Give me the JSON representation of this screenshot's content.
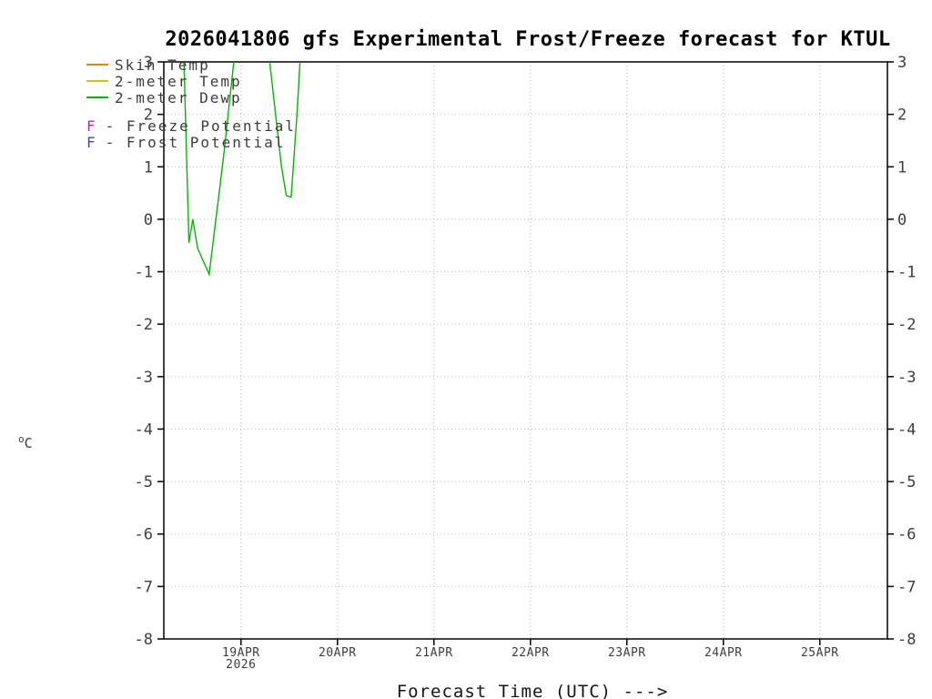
{
  "chart_data": {
    "type": "line",
    "title": "2026041806 gfs Experimental Frost/Freeze forecast for KTUL",
    "xlabel": "Forecast Time (UTC) --->",
    "ylabel_sup": "o",
    "ylabel_main": "C",
    "ylim": [
      -8,
      3
    ],
    "x_range_days": [
      18.2,
      25.7
    ],
    "y_ticks": [
      3,
      2,
      1,
      0,
      -1,
      -2,
      -3,
      -4,
      -5,
      -6,
      -7,
      -8
    ],
    "x_ticks": [
      {
        "label": "19APR",
        "day": 19,
        "sub": "2026"
      },
      {
        "label": "20APR",
        "day": 20
      },
      {
        "label": "21APR",
        "day": 21
      },
      {
        "label": "22APR",
        "day": 22
      },
      {
        "label": "23APR",
        "day": 23
      },
      {
        "label": "24APR",
        "day": 24
      },
      {
        "label": "25APR",
        "day": 25
      }
    ],
    "grid": "dotted",
    "legend_position": "top-left",
    "series": [
      {
        "name": "Skin Temp",
        "color": "#e98300",
        "points": []
      },
      {
        "name": "2-meter Temp",
        "color": "#d9c300",
        "points": []
      },
      {
        "name": "2-meter Dewp",
        "color": "#00b800",
        "points": [
          [
            18.4,
            3.6
          ],
          [
            18.46,
            -0.45
          ],
          [
            18.5,
            0.0
          ],
          [
            18.55,
            -0.55
          ],
          [
            18.67,
            -1.05
          ],
          [
            18.82,
            1.2
          ],
          [
            18.96,
            3.6
          ],
          [
            19.1,
            6.0
          ],
          [
            19.26,
            3.6
          ],
          [
            19.42,
            1.0
          ],
          [
            19.47,
            0.45
          ],
          [
            19.52,
            0.42
          ],
          [
            19.58,
            2.0
          ],
          [
            19.63,
            3.6
          ]
        ]
      }
    ],
    "flags": [
      {
        "letter": "F",
        "label": "- Freeze Potential",
        "color": "#f000f0"
      },
      {
        "letter": "F",
        "label": "- Frost Potential",
        "color": "#3c3cf0"
      }
    ]
  }
}
